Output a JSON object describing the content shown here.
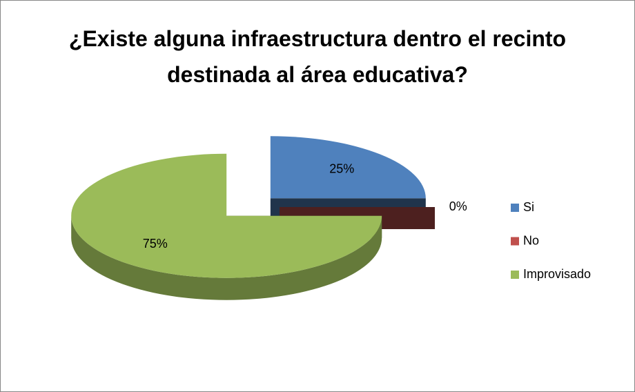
{
  "chart_data": {
    "type": "pie3d",
    "title": "¿Existe alguna infraestructura dentro el recinto destinada al área educativa?",
    "categories": [
      "Si",
      "No",
      "Improvisado"
    ],
    "values": [
      25,
      0,
      75
    ],
    "value_labels": [
      "25%",
      "0%",
      "75%"
    ],
    "colors": [
      "#4f81bd",
      "#c0504d",
      "#9bbb59"
    ],
    "legend": "right"
  }
}
